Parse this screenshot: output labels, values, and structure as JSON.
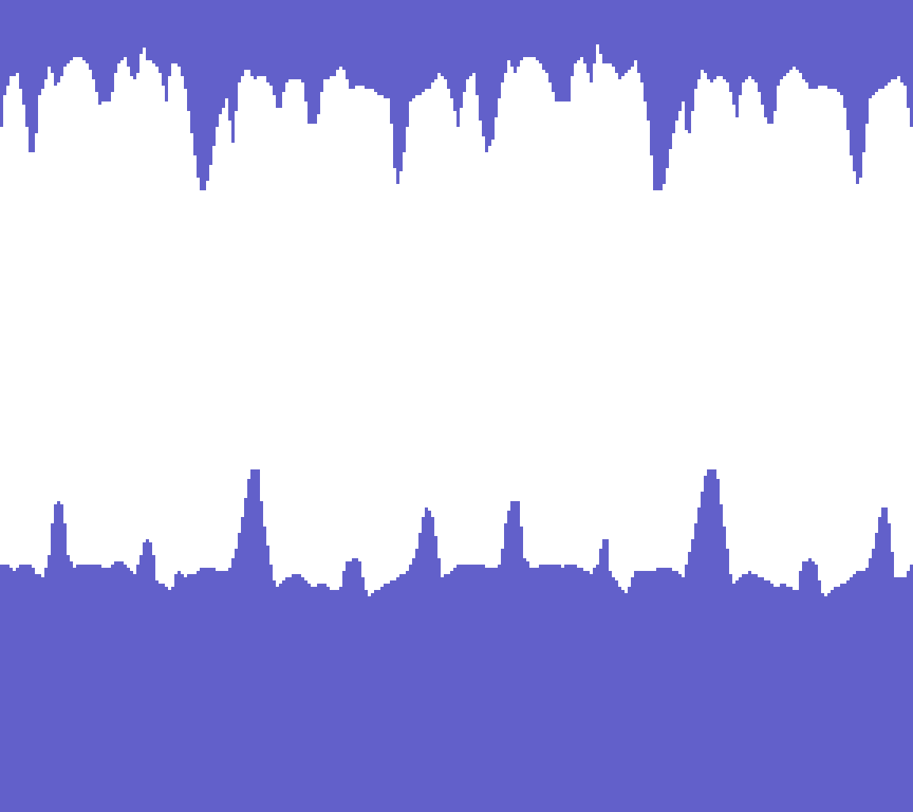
{
  "game": {
    "scene": "pixel-cave-corridor",
    "colors": {
      "rock": "#6260CA",
      "background": "#FFFFFF"
    },
    "elements": [
      "cave-ceiling-stalactites",
      "cave-floor-stalagmites"
    ]
  }
}
